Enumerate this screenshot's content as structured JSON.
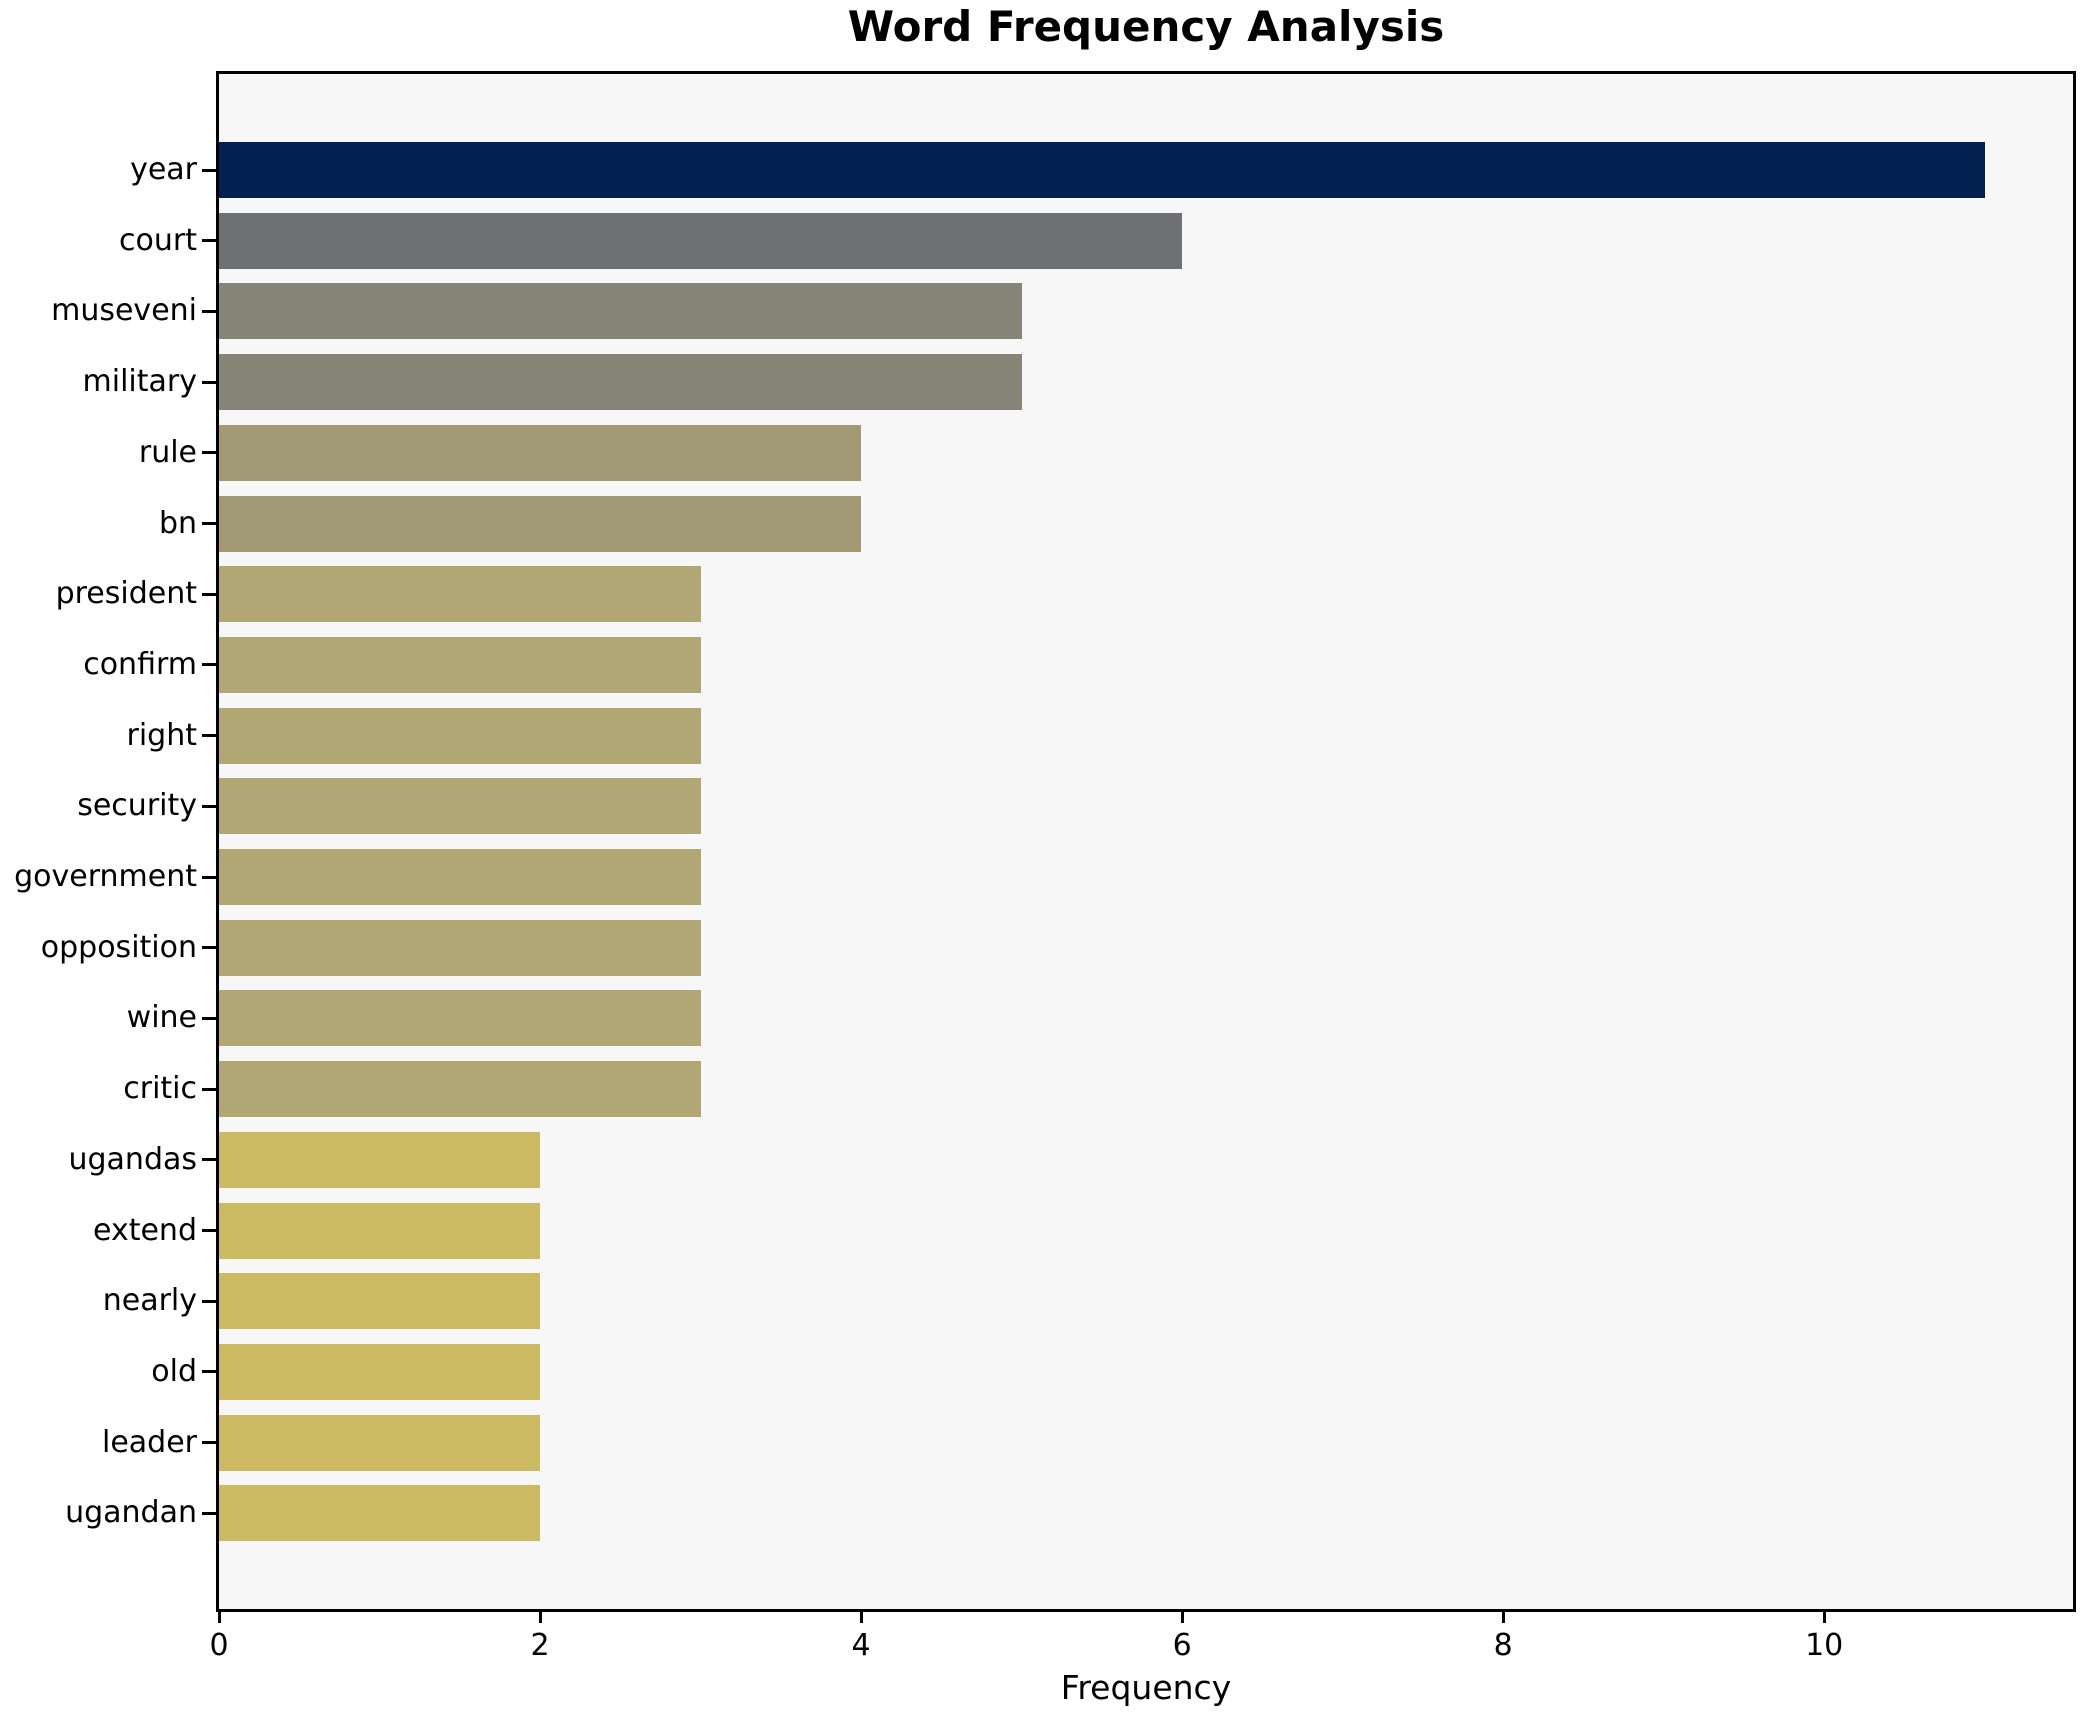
{
  "title": "Word Frequency Analysis",
  "chart_data": {
    "type": "bar",
    "orientation": "horizontal",
    "title": "Word Frequency Analysis",
    "xlabel": "Frequency",
    "ylabel": "",
    "xlim": [
      0,
      11.55
    ],
    "xticks": [
      "0",
      "2",
      "4",
      "6",
      "8",
      "10"
    ],
    "xtick_values": [
      0,
      2,
      4,
      6,
      8,
      10
    ],
    "grid": false,
    "legend_position": "none",
    "plot_background": "#f7f7f7",
    "figure_background": "#ffffff",
    "spine_color": "#000000",
    "categories": [
      "year",
      "court",
      "museveni",
      "military",
      "rule",
      "bn",
      "president",
      "confirm",
      "right",
      "security",
      "government",
      "opposition",
      "wine",
      "critic",
      "ugandas",
      "extend",
      "nearly",
      "old",
      "leader",
      "ugandan"
    ],
    "values": [
      11,
      6,
      5,
      5,
      4,
      4,
      3,
      3,
      3,
      3,
      3,
      3,
      3,
      3,
      2,
      2,
      2,
      2,
      2,
      2
    ],
    "bar_colors": [
      "#032150",
      "#6f7073",
      "#868578",
      "#868578",
      "#a29a74",
      "#a29a74",
      "#b1a775",
      "#b1a775",
      "#b1a775",
      "#b1a775",
      "#b1a775",
      "#b1a775",
      "#b1a775",
      "#b1a775",
      "#ccba62",
      "#ccba62",
      "#ccba62",
      "#ccba62",
      "#ccba62",
      "#ccba62"
    ]
  }
}
